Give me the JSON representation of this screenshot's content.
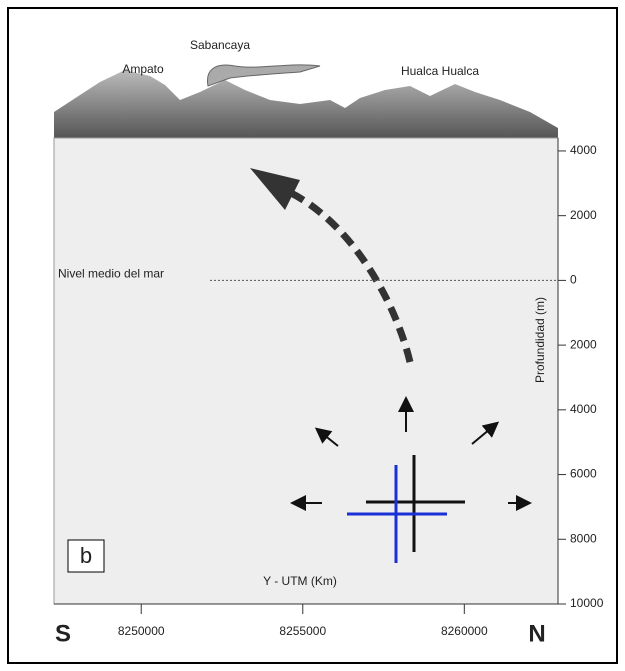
{
  "type": "cross-section",
  "panel_label": "b",
  "volcanoes": [
    "Ampato",
    "Sabancaya",
    "Hualca Hualca"
  ],
  "sea_level_label": "Nivel medio del mar",
  "y_axis": {
    "title": "Profundidad (m)",
    "lim": [
      -10000,
      4400
    ],
    "ticks": [
      4000,
      2000,
      0,
      {
        "value": -2000,
        "label": "2000"
      },
      {
        "value": -4000,
        "label": "4000"
      },
      {
        "value": -6000,
        "label": "6000"
      },
      {
        "value": -8000,
        "label": "8000"
      },
      {
        "value": -10000,
        "label": "10000"
      }
    ]
  },
  "x_axis": {
    "title": "Y - UTM (Km)",
    "lim": [
      8247300,
      8262900
    ],
    "ticks": [
      8250000,
      8255000,
      8260000
    ]
  },
  "direction_labels": [
    "S",
    "N"
  ]
}
